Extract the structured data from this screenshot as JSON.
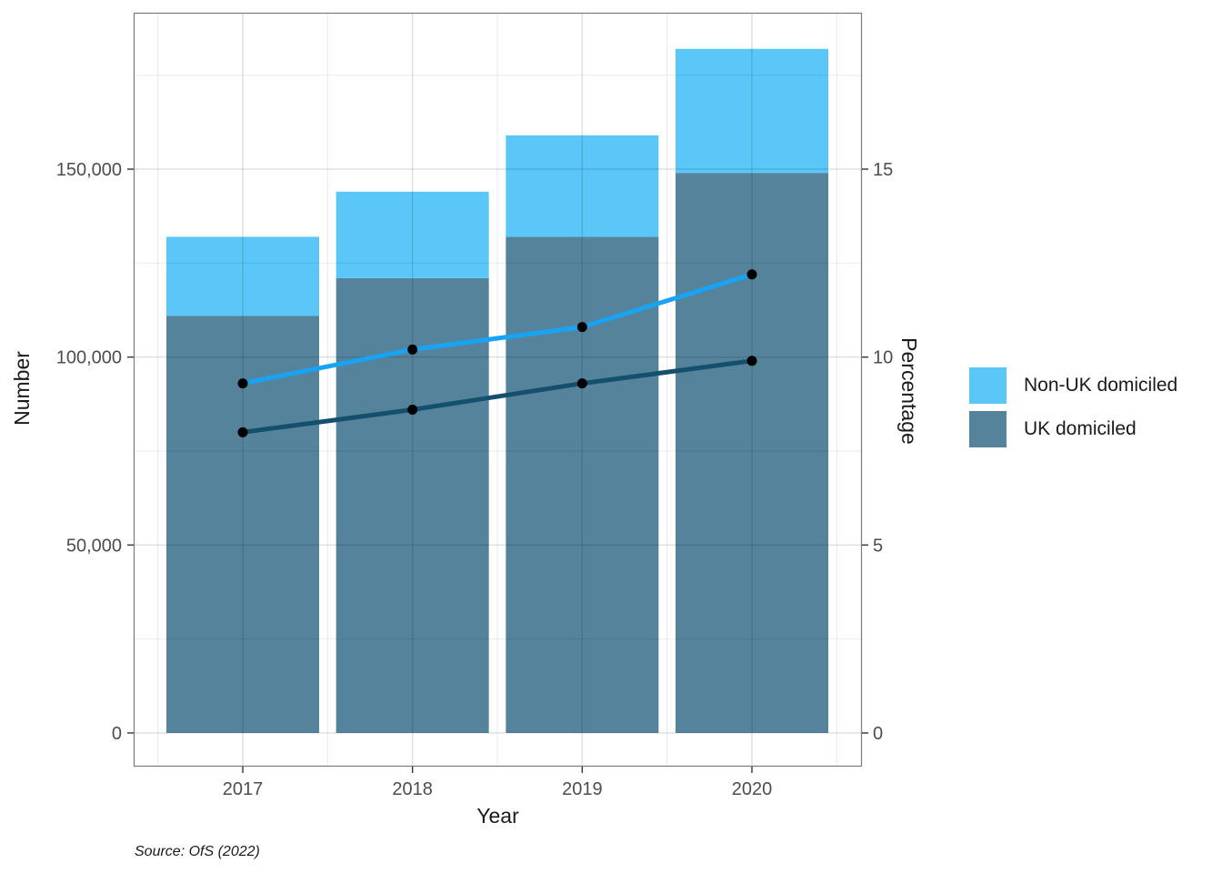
{
  "source_note": "Source: OfS (2022)",
  "chart_data": {
    "type": "bar",
    "subtype": "stacked-bars-with-percentage-lines",
    "title": "",
    "xlabel": "Year",
    "ylabel_left": "Number",
    "ylabel_right": "Percentage",
    "categories": [
      "2017",
      "2018",
      "2019",
      "2020"
    ],
    "bar_series": [
      {
        "name": "UK domiciled",
        "color": "#55839B",
        "values": [
          111000,
          121000,
          132000,
          149000
        ]
      },
      {
        "name": "Non-UK domiciled",
        "color": "#5AC7F8",
        "values": [
          21000,
          23000,
          27000,
          33000
        ]
      }
    ],
    "bar_totals": [
      132000,
      144000,
      159000,
      182000
    ],
    "line_series": [
      {
        "name": "Non-UK domiciled (percentage)",
        "color": "#19A3F5",
        "values": [
          9.3,
          10.2,
          10.8,
          12.2
        ]
      },
      {
        "name": "UK domiciled (percentage)",
        "color": "#14506E",
        "values": [
          8.0,
          8.6,
          9.3,
          9.9
        ]
      }
    ],
    "marker_color": "#000000",
    "axis_left": {
      "ticks": [
        0,
        50000,
        100000,
        150000
      ],
      "tick_labels": [
        "0",
        "50,000",
        "100,000",
        "150,000"
      ],
      "minor_ticks": [
        25000,
        75000,
        125000,
        175000
      ],
      "range": [
        0,
        191500
      ]
    },
    "axis_right": {
      "ticks": [
        0,
        5,
        10,
        15
      ],
      "tick_labels": [
        "0",
        "5",
        "10",
        "15"
      ],
      "range": [
        0,
        19.15
      ]
    },
    "legend": {
      "position": "right",
      "entries": [
        "Non-UK domiciled",
        "UK domiciled"
      ]
    },
    "grid": true
  },
  "style": {
    "tick_label_color": "#4d4d4d",
    "axis_title_color": "#1a1a1a",
    "panel_border_color": "#7a7a7a",
    "tick_mark_color": "#333333"
  }
}
